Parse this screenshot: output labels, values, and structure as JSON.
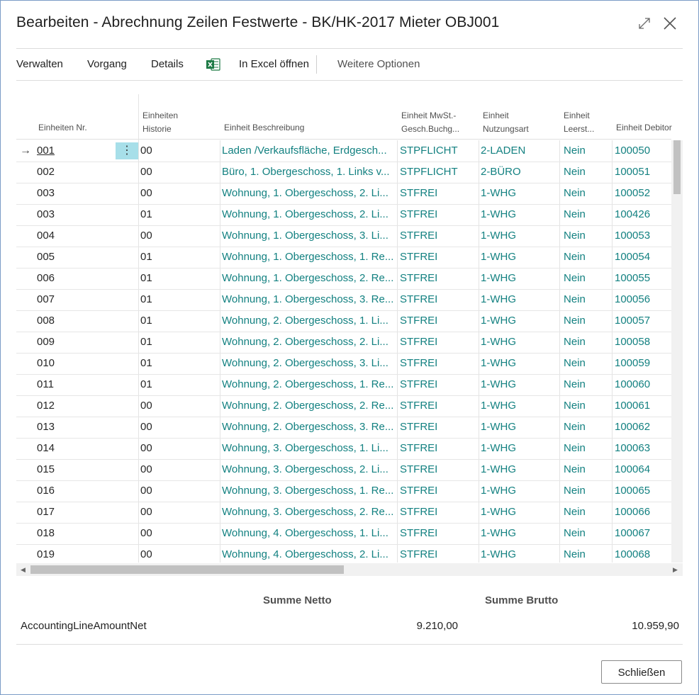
{
  "dialog": {
    "title": "Bearbeiten - Abrechnung Zeilen Festwerte - BK/HK-2017 Mieter OBJ001"
  },
  "toolbar": {
    "items": [
      "Verwalten",
      "Vorgang",
      "Details",
      "In Excel öffnen",
      "Weitere Optionen"
    ]
  },
  "columns": {
    "nr": "Einheiten Nr.",
    "historie_1": "Einheiten",
    "historie_2": "Historie",
    "beschreibung": "Einheit Beschreibung",
    "mwst_1": "Einheit MwSt.-",
    "mwst_2": "Gesch.Buchg...",
    "nutzung_1": "Einheit",
    "nutzung_2": "Nutzungsart",
    "leerst_1": "Einheit",
    "leerst_2": "Leerst...",
    "debitor": "Einheit Debitor"
  },
  "rows": [
    [
      "001",
      "00",
      "Laden /Verkaufsfläche, Erdgesch...",
      "STPFLICHT",
      "2-LADEN",
      "Nein",
      "100050"
    ],
    [
      "002",
      "00",
      "Büro, 1. Obergeschoss, 1. Links v...",
      "STPFLICHT",
      "2-BÜRO",
      "Nein",
      "100051"
    ],
    [
      "003",
      "00",
      "Wohnung, 1. Obergeschoss, 2. Li...",
      "STFREI",
      "1-WHG",
      "Nein",
      "100052"
    ],
    [
      "003",
      "01",
      "Wohnung, 1. Obergeschoss, 2. Li...",
      "STFREI",
      "1-WHG",
      "Nein",
      "100426"
    ],
    [
      "004",
      "00",
      "Wohnung, 1. Obergeschoss, 3. Li...",
      "STFREI",
      "1-WHG",
      "Nein",
      "100053"
    ],
    [
      "005",
      "01",
      "Wohnung, 1. Obergeschoss, 1. Re...",
      "STFREI",
      "1-WHG",
      "Nein",
      "100054"
    ],
    [
      "006",
      "01",
      "Wohnung, 1. Obergeschoss, 2. Re...",
      "STFREI",
      "1-WHG",
      "Nein",
      "100055"
    ],
    [
      "007",
      "01",
      "Wohnung, 1. Obergeschoss, 3. Re...",
      "STFREI",
      "1-WHG",
      "Nein",
      "100056"
    ],
    [
      "008",
      "01",
      "Wohnung, 2. Obergeschoss, 1. Li...",
      "STFREI",
      "1-WHG",
      "Nein",
      "100057"
    ],
    [
      "009",
      "01",
      "Wohnung, 2. Obergeschoss, 2. Li...",
      "STFREI",
      "1-WHG",
      "Nein",
      "100058"
    ],
    [
      "010",
      "01",
      "Wohnung, 2. Obergeschoss, 3. Li...",
      "STFREI",
      "1-WHG",
      "Nein",
      "100059"
    ],
    [
      "011",
      "01",
      "Wohnung, 2. Obergeschoss, 1. Re...",
      "STFREI",
      "1-WHG",
      "Nein",
      "100060"
    ],
    [
      "012",
      "00",
      "Wohnung, 2. Obergeschoss, 2. Re...",
      "STFREI",
      "1-WHG",
      "Nein",
      "100061"
    ],
    [
      "013",
      "00",
      "Wohnung, 2. Obergeschoss, 3. Re...",
      "STFREI",
      "1-WHG",
      "Nein",
      "100062"
    ],
    [
      "014",
      "00",
      "Wohnung, 3. Obergeschoss, 1. Li...",
      "STFREI",
      "1-WHG",
      "Nein",
      "100063"
    ],
    [
      "015",
      "00",
      "Wohnung, 3. Obergeschoss, 2. Li...",
      "STFREI",
      "1-WHG",
      "Nein",
      "100064"
    ],
    [
      "016",
      "00",
      "Wohnung, 3. Obergeschoss, 1. Re...",
      "STFREI",
      "1-WHG",
      "Nein",
      "100065"
    ],
    [
      "017",
      "00",
      "Wohnung, 3. Obergeschoss, 2. Re...",
      "STFREI",
      "1-WHG",
      "Nein",
      "100066"
    ],
    [
      "018",
      "00",
      "Wohnung, 4. Obergeschoss, 1. Li...",
      "STFREI",
      "1-WHG",
      "Nein",
      "100067"
    ],
    [
      "019",
      "00",
      "Wohnung, 4. Obergeschoss, 2. Li...",
      "STFREI",
      "1-WHG",
      "Nein",
      "100068"
    ]
  ],
  "selected_row": 0,
  "totals": {
    "netto_header": "Summe Netto",
    "brutto_header": "Summe Brutto",
    "label": "AccountingLineAmountNet",
    "netto_value": "9.210,00",
    "brutto_value": "10.959,90"
  },
  "buttons": {
    "close": "Schließen"
  },
  "colors": {
    "link": "#138181",
    "selected_action": "#a7dfe9",
    "frame": "#7a9cc6"
  },
  "icons": [
    "expand-icon",
    "close-icon",
    "excel-icon",
    "row-arrow-icon",
    "row-actions-icon"
  ]
}
